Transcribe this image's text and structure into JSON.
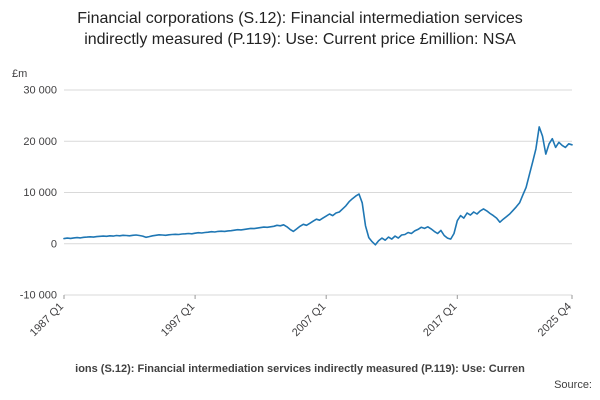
{
  "title": "Financial corporations (S.12): Financial intermediation services indirectly measured (P.119): Use: Current price £million: NSA",
  "footer": {
    "caption": "ions (S.12): Financial intermediation services indirectly measured (P.119): Use: Curren",
    "source": "Source:"
  },
  "chart_data": {
    "type": "line",
    "title": "Financial corporations (S.12): Financial intermediation services indirectly measured (P.119): Use: Current price £million: NSA",
    "xlabel": "",
    "ylabel": "£m",
    "x_unit": "quarter",
    "x_start": "1987 Q1",
    "x_end": "2025 Q4",
    "ylim": [
      -10000,
      30000
    ],
    "grid": "horizontal",
    "legend": "none",
    "line_color": "#1f77b4",
    "y_ticks": [
      {
        "label": "30 000",
        "value": 30000
      },
      {
        "label": "20 000",
        "value": 20000
      },
      {
        "label": "10 000",
        "value": 10000
      },
      {
        "label": "0",
        "value": 0
      },
      {
        "label": "-10 000",
        "value": -10000
      }
    ],
    "x_ticks": [
      {
        "label": "1987 Q1",
        "index": 0
      },
      {
        "label": "1997 Q1",
        "index": 40
      },
      {
        "label": "2007 Q1",
        "index": 80
      },
      {
        "label": "2017 Q1",
        "index": 120
      },
      {
        "label": "2025 Q4",
        "index": 155
      }
    ],
    "values": [
      1000,
      1100,
      1050,
      1150,
      1200,
      1150,
      1250,
      1300,
      1350,
      1300,
      1400,
      1450,
      1500,
      1450,
      1550,
      1500,
      1600,
      1550,
      1650,
      1600,
      1550,
      1650,
      1700,
      1600,
      1500,
      1250,
      1400,
      1550,
      1650,
      1750,
      1700,
      1650,
      1750,
      1800,
      1850,
      1800,
      1900,
      1950,
      2000,
      1950,
      2050,
      2150,
      2100,
      2200,
      2250,
      2350,
      2300,
      2400,
      2450,
      2400,
      2500,
      2550,
      2650,
      2750,
      2700,
      2800,
      2900,
      3000,
      2950,
      3050,
      3150,
      3250,
      3200,
      3300,
      3400,
      3600,
      3500,
      3700,
      3300,
      2800,
      2400,
      2900,
      3400,
      3800,
      3600,
      4000,
      4400,
      4800,
      4600,
      5000,
      5400,
      5800,
      5500,
      6000,
      6200,
      6800,
      7400,
      8200,
      8800,
      9300,
      9700,
      8000,
      3500,
      1200,
      400,
      -200,
      600,
      1100,
      700,
      1300,
      900,
      1500,
      1100,
      1700,
      1800,
      2200,
      2000,
      2500,
      2800,
      3200,
      3000,
      3300,
      2900,
      2400,
      2000,
      2600,
      1600,
      1100,
      900,
      2000,
      4500,
      5500,
      5000,
      6000,
      5600,
      6200,
      5800,
      6400,
      6800,
      6400,
      5900,
      5500,
      5000,
      4200,
      4800,
      5300,
      5800,
      6500,
      7200,
      8000,
      9500,
      11000,
      13500,
      16000,
      18500,
      22800,
      21000,
      17500,
      19500,
      20500,
      18800,
      19800,
      19200,
      18800,
      19500,
      19300
    ]
  }
}
